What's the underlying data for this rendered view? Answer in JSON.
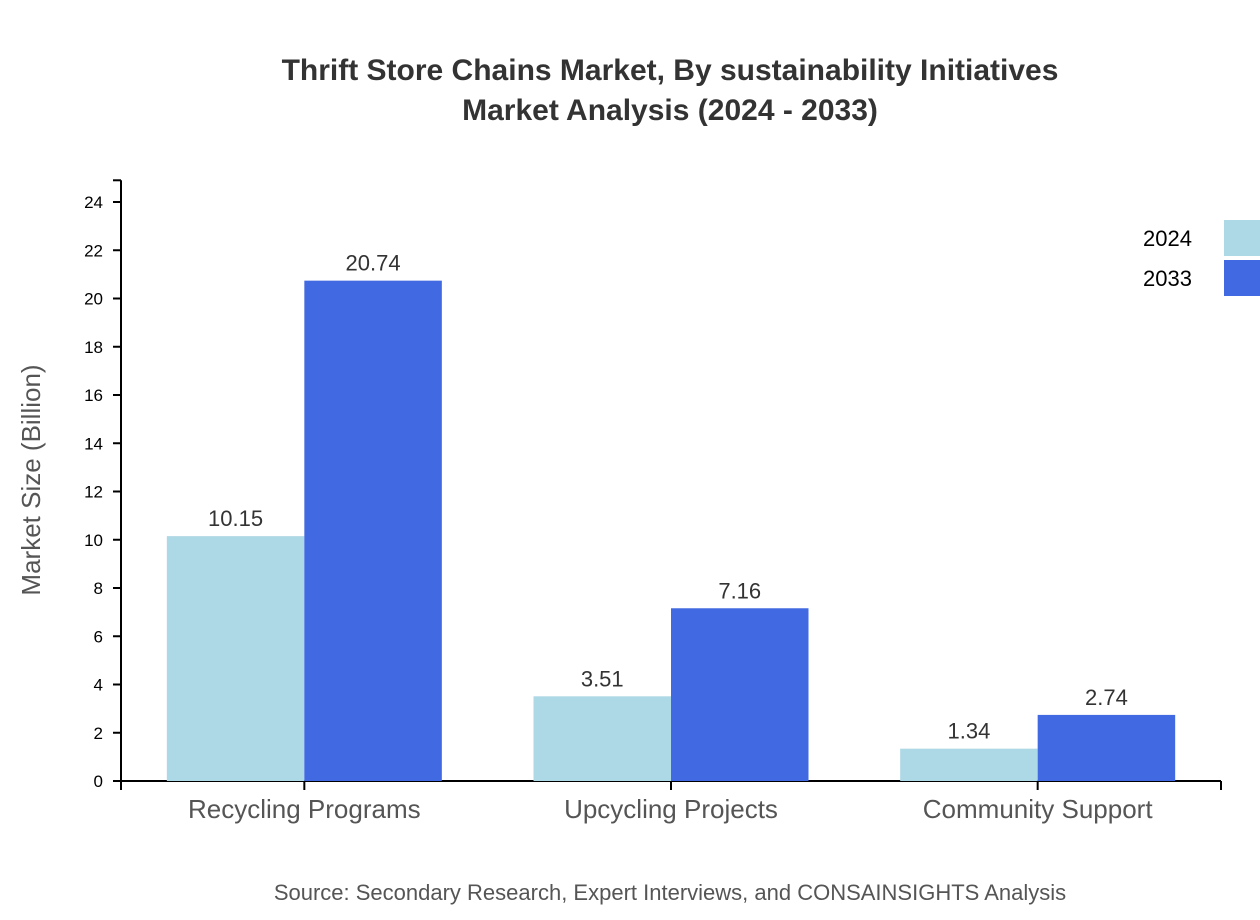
{
  "chart_data": {
    "type": "bar",
    "title": "Thrift Store Chains Market, By sustainability Initiatives",
    "subtitle": "Market Analysis (2024 - 2033)",
    "xlabel": "",
    "ylabel": "Market Size (Billion)",
    "categories": [
      "Recycling Programs",
      "Upcycling Projects",
      "Community Support"
    ],
    "series": [
      {
        "name": "2024",
        "color": "#add8e6",
        "values": [
          10.15,
          3.51,
          1.34
        ]
      },
      {
        "name": "2033",
        "color": "#4169e1",
        "values": [
          20.74,
          7.16,
          2.74
        ]
      }
    ],
    "ylim": [
      0,
      24.9
    ],
    "yticks": [
      0,
      2,
      4,
      6,
      8,
      10,
      12,
      14,
      16,
      18,
      20,
      22,
      24
    ],
    "grid": false,
    "legend_position": "top-right",
    "source": "Source: Secondary Research, Expert Interviews, and CONSAINSIGHTS Analysis"
  }
}
